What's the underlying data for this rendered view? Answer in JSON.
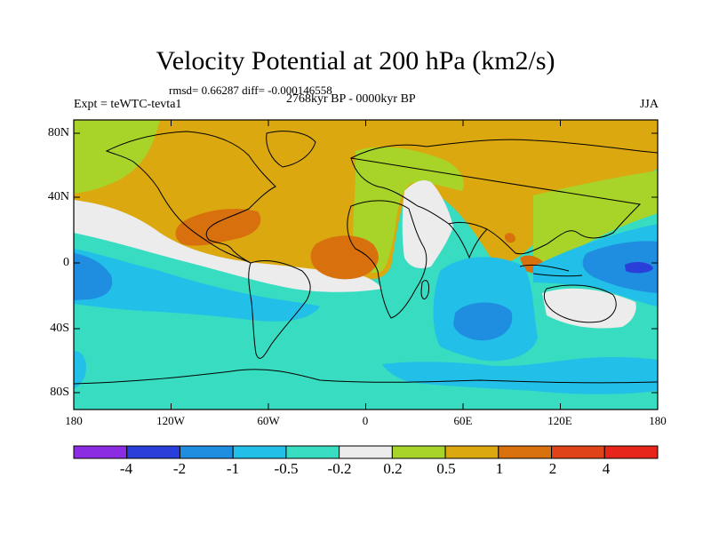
{
  "title": "Velocity Potential at 200 hPa (km2/s)",
  "stats_line": "rmsd= 0.66287 diff= -0.000146558",
  "experiment": "Expt = teWTC-tevta1",
  "period": "2768kyr BP - 0000kyr BP",
  "season": "JJA",
  "lat_labels": [
    "80N",
    "40N",
    "0",
    "40S",
    "80S"
  ],
  "lon_labels": [
    "180",
    "120W",
    "60W",
    "0",
    "60E",
    "120E",
    "180"
  ],
  "colorbar": {
    "labels": [
      "-4",
      "-2",
      "-1",
      "-0.5",
      "-0.2",
      "0.2",
      "0.5",
      "1",
      "2",
      "4"
    ],
    "colors": [
      "#8b2be2",
      "#2a3fd9",
      "#1f8ee0",
      "#22c0e8",
      "#38dcc0",
      "#ececec",
      "#a8d42a",
      "#dba810",
      "#d8700e",
      "#e04318",
      "#e8251b"
    ]
  },
  "colors": {
    "positive_1": "#dba810",
    "positive_2": "#d8700e",
    "weak_pos": "#a8d42a",
    "neutral": "#ececec",
    "weak_neg": "#38dcc0",
    "neg_1": "#22c0e8",
    "neg_2": "#1f8ee0",
    "neg_3": "#2a3fd9"
  }
}
